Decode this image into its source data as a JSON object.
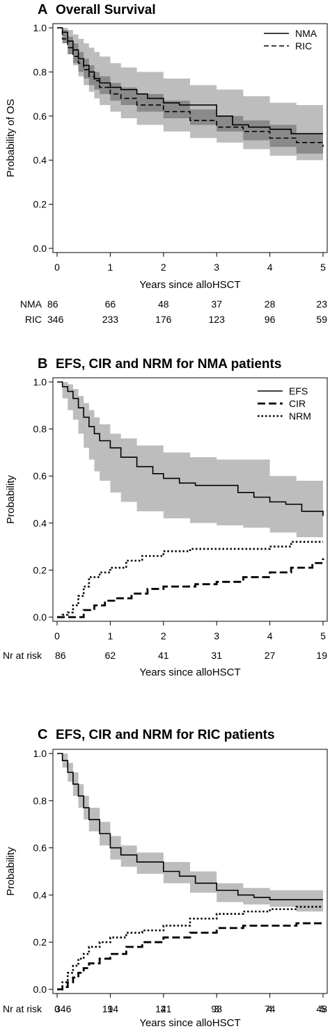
{
  "chart_data": [
    {
      "type": "line",
      "letter": "A",
      "title": "Overall Survival",
      "xlabel": "Years since alloHSCT",
      "ylabel": "Probability of OS",
      "xlim": [
        0,
        5
      ],
      "ylim": [
        0,
        1
      ],
      "x_ticks": [
        "0",
        "1",
        "2",
        "3",
        "4",
        "5"
      ],
      "y_ticks": [
        "0.0",
        "0.2",
        "0.4",
        "0.6",
        "0.8",
        "1.0"
      ],
      "legend_position": "top-right",
      "bands": [
        {
          "for": "NMA",
          "color": "#bdbdbd",
          "x": [
            0,
            0.1,
            0.2,
            0.3,
            0.4,
            0.5,
            0.6,
            0.7,
            0.8,
            1.0,
            1.2,
            1.5,
            2.0,
            2.5,
            3.0,
            3.5,
            4.0,
            4.5,
            5.0
          ],
          "lower": [
            1.0,
            0.94,
            0.88,
            0.83,
            0.78,
            0.74,
            0.71,
            0.68,
            0.65,
            0.62,
            0.59,
            0.56,
            0.53,
            0.5,
            0.48,
            0.45,
            0.42,
            0.4,
            0.39
          ],
          "upper": [
            1.0,
            1.0,
            0.99,
            0.97,
            0.95,
            0.93,
            0.91,
            0.89,
            0.87,
            0.84,
            0.82,
            0.8,
            0.77,
            0.74,
            0.72,
            0.69,
            0.66,
            0.65,
            0.64
          ]
        },
        {
          "for": "RIC",
          "color": "#8a8a8a",
          "x": [
            0,
            0.1,
            0.2,
            0.3,
            0.4,
            0.5,
            0.6,
            0.7,
            0.8,
            1.0,
            1.2,
            1.5,
            2.0,
            2.5,
            3.0,
            3.5,
            4.0,
            4.5,
            5.0
          ],
          "lower": [
            1.0,
            0.93,
            0.88,
            0.84,
            0.8,
            0.77,
            0.74,
            0.72,
            0.7,
            0.67,
            0.65,
            0.62,
            0.59,
            0.56,
            0.53,
            0.49,
            0.46,
            0.43,
            0.42
          ],
          "upper": [
            1.0,
            0.99,
            0.96,
            0.93,
            0.89,
            0.86,
            0.83,
            0.8,
            0.78,
            0.75,
            0.73,
            0.7,
            0.67,
            0.63,
            0.6,
            0.58,
            0.56,
            0.52,
            0.51
          ]
        }
      ],
      "series": [
        {
          "name": "NMA",
          "dash": "solid",
          "x": [
            0,
            0.1,
            0.2,
            0.3,
            0.4,
            0.5,
            0.6,
            0.7,
            0.8,
            1.0,
            1.2,
            1.5,
            1.7,
            2.0,
            2.3,
            2.6,
            3.0,
            3.3,
            3.6,
            4.0,
            4.4,
            5.0
          ],
          "y": [
            1.0,
            0.98,
            0.94,
            0.9,
            0.86,
            0.83,
            0.8,
            0.77,
            0.75,
            0.73,
            0.72,
            0.7,
            0.68,
            0.66,
            0.65,
            0.65,
            0.6,
            0.56,
            0.55,
            0.54,
            0.52,
            0.52
          ]
        },
        {
          "name": "RIC",
          "dash": "dashed",
          "x": [
            0,
            0.1,
            0.2,
            0.3,
            0.4,
            0.5,
            0.6,
            0.7,
            0.8,
            1.0,
            1.2,
            1.5,
            2.0,
            2.5,
            3.0,
            3.5,
            4.0,
            4.5,
            5.0
          ],
          "y": [
            1.0,
            0.95,
            0.91,
            0.87,
            0.84,
            0.81,
            0.78,
            0.76,
            0.73,
            0.7,
            0.68,
            0.65,
            0.62,
            0.58,
            0.55,
            0.53,
            0.5,
            0.48,
            0.46
          ]
        }
      ],
      "risk_table": {
        "label_anchor": "end",
        "rows": [
          {
            "label": "NMA",
            "values": [
              "86",
              "66",
              "48",
              "37",
              "28",
              "23"
            ]
          },
          {
            "label": "RIC",
            "values": [
              "346",
              "233",
              "176",
              "123",
              "96",
              "59"
            ]
          }
        ]
      }
    },
    {
      "type": "line",
      "letter": "B",
      "title": "EFS, CIR and NRM for NMA patients",
      "xlabel": "Years since alloHSCT",
      "ylabel": "Probability",
      "xlim": [
        0,
        5
      ],
      "ylim": [
        0,
        1
      ],
      "x_ticks": [
        "0",
        "1",
        "2",
        "3",
        "4",
        "5"
      ],
      "y_ticks": [
        "0.0",
        "0.2",
        "0.4",
        "0.6",
        "0.8",
        "1.0"
      ],
      "legend_position": "top-right",
      "bands": [
        {
          "for": "EFS",
          "color": "#bdbdbd",
          "x": [
            0,
            0.1,
            0.2,
            0.3,
            0.4,
            0.5,
            0.6,
            0.7,
            0.8,
            1.0,
            1.2,
            1.5,
            2.0,
            2.5,
            3.0,
            3.5,
            4.0,
            4.5,
            5.0
          ],
          "lower": [
            1.0,
            0.93,
            0.88,
            0.84,
            0.78,
            0.72,
            0.67,
            0.62,
            0.58,
            0.53,
            0.49,
            0.45,
            0.42,
            0.4,
            0.39,
            0.38,
            0.36,
            0.34,
            0.33
          ],
          "upper": [
            1.0,
            1.0,
            0.99,
            0.97,
            0.94,
            0.91,
            0.88,
            0.85,
            0.82,
            0.78,
            0.76,
            0.73,
            0.7,
            0.68,
            0.67,
            0.67,
            0.6,
            0.58,
            0.57
          ]
        }
      ],
      "series": [
        {
          "name": "EFS",
          "dash": "solid",
          "x": [
            0,
            0.1,
            0.2,
            0.3,
            0.4,
            0.5,
            0.6,
            0.7,
            0.8,
            1.0,
            1.2,
            1.5,
            1.8,
            2.0,
            2.3,
            2.6,
            3.0,
            3.4,
            3.7,
            4.0,
            4.3,
            4.6,
            5.0
          ],
          "y": [
            1.0,
            0.98,
            0.96,
            0.93,
            0.89,
            0.85,
            0.81,
            0.78,
            0.75,
            0.72,
            0.68,
            0.64,
            0.61,
            0.59,
            0.57,
            0.56,
            0.56,
            0.53,
            0.51,
            0.49,
            0.48,
            0.45,
            0.43
          ]
        },
        {
          "name": "CIR",
          "dash": "longdash",
          "x": [
            0,
            0.3,
            0.5,
            0.7,
            0.9,
            1.1,
            1.4,
            1.7,
            2.0,
            2.6,
            3.0,
            3.5,
            4.0,
            4.4,
            4.8,
            5.0
          ],
          "y": [
            0.0,
            0.0,
            0.03,
            0.05,
            0.07,
            0.08,
            0.1,
            0.12,
            0.13,
            0.14,
            0.15,
            0.17,
            0.19,
            0.21,
            0.23,
            0.25
          ]
        },
        {
          "name": "NRM",
          "dash": "dotted",
          "x": [
            0,
            0.1,
            0.2,
            0.3,
            0.4,
            0.5,
            0.6,
            0.8,
            1.0,
            1.3,
            1.6,
            2.0,
            2.5,
            3.0,
            3.5,
            4.0,
            4.4,
            5.0
          ],
          "y": [
            0.0,
            0.01,
            0.02,
            0.05,
            0.09,
            0.13,
            0.17,
            0.19,
            0.21,
            0.24,
            0.26,
            0.28,
            0.29,
            0.29,
            0.29,
            0.3,
            0.32,
            0.32
          ]
        }
      ],
      "risk_table": {
        "label_anchor": "start",
        "rows": [
          {
            "label": "Nr at risk",
            "values": [
              "86",
              "62",
              "41",
              "31",
              "27",
              "19"
            ]
          }
        ]
      }
    },
    {
      "type": "line",
      "letter": "C",
      "title": "EFS, CIR and NRM for RIC patients",
      "xlabel": "Years since alloHSCT",
      "ylabel": "Probability",
      "xlim": [
        0,
        5
      ],
      "ylim": [
        0,
        1
      ],
      "x_ticks": [
        "0",
        "1",
        "2",
        "3",
        "4",
        "5"
      ],
      "y_ticks": [
        "0.0",
        "0.2",
        "0.4",
        "0.6",
        "0.8",
        "1.0"
      ],
      "legend_position": "none",
      "bands": [
        {
          "for": "EFS",
          "color": "#bdbdbd",
          "x": [
            0,
            0.1,
            0.2,
            0.3,
            0.4,
            0.5,
            0.6,
            0.8,
            1.0,
            1.2,
            1.5,
            2.0,
            2.5,
            3.0,
            3.5,
            4.0,
            4.5,
            5.0
          ],
          "lower": [
            1.0,
            0.94,
            0.88,
            0.82,
            0.77,
            0.72,
            0.67,
            0.61,
            0.55,
            0.52,
            0.49,
            0.45,
            0.41,
            0.37,
            0.36,
            0.35,
            0.33,
            0.32
          ],
          "upper": [
            1.0,
            1.0,
            0.96,
            0.92,
            0.87,
            0.82,
            0.77,
            0.71,
            0.65,
            0.61,
            0.58,
            0.54,
            0.5,
            0.45,
            0.43,
            0.42,
            0.42,
            0.41
          ]
        }
      ],
      "series": [
        {
          "name": "EFS",
          "dash": "solid",
          "x": [
            0,
            0.1,
            0.2,
            0.3,
            0.4,
            0.5,
            0.6,
            0.8,
            1.0,
            1.2,
            1.5,
            2.0,
            2.3,
            2.6,
            3.0,
            3.4,
            3.7,
            4.0,
            4.3,
            5.0
          ],
          "y": [
            1.0,
            0.97,
            0.92,
            0.87,
            0.82,
            0.77,
            0.72,
            0.66,
            0.6,
            0.57,
            0.54,
            0.5,
            0.48,
            0.45,
            0.42,
            0.4,
            0.39,
            0.38,
            0.38,
            0.38
          ]
        },
        {
          "name": "CIR",
          "dash": "longdash",
          "x": [
            0,
            0.1,
            0.2,
            0.3,
            0.4,
            0.5,
            0.6,
            0.8,
            1.0,
            1.3,
            1.6,
            2.0,
            2.5,
            3.0,
            3.5,
            4.0,
            4.5,
            5.0
          ],
          "y": [
            0.0,
            0.01,
            0.03,
            0.05,
            0.07,
            0.09,
            0.11,
            0.13,
            0.15,
            0.18,
            0.2,
            0.22,
            0.24,
            0.26,
            0.27,
            0.27,
            0.28,
            0.28
          ]
        },
        {
          "name": "NRM",
          "dash": "dotted",
          "x": [
            0,
            0.1,
            0.2,
            0.3,
            0.4,
            0.5,
            0.6,
            0.8,
            1.0,
            1.3,
            1.6,
            2.0,
            2.5,
            3.0,
            3.5,
            4.0,
            4.5,
            5.0
          ],
          "y": [
            0.0,
            0.03,
            0.07,
            0.1,
            0.13,
            0.15,
            0.18,
            0.2,
            0.22,
            0.24,
            0.25,
            0.27,
            0.3,
            0.32,
            0.33,
            0.34,
            0.35,
            0.35
          ]
        }
      ],
      "risk_table": {
        "label_anchor": "start",
        "rows": [
          {
            "label": "Nr at risk",
            "values": [
              "346",
              "194",
              "141",
              "93",
              "74",
              "48"
            ]
          }
        ]
      }
    }
  ]
}
